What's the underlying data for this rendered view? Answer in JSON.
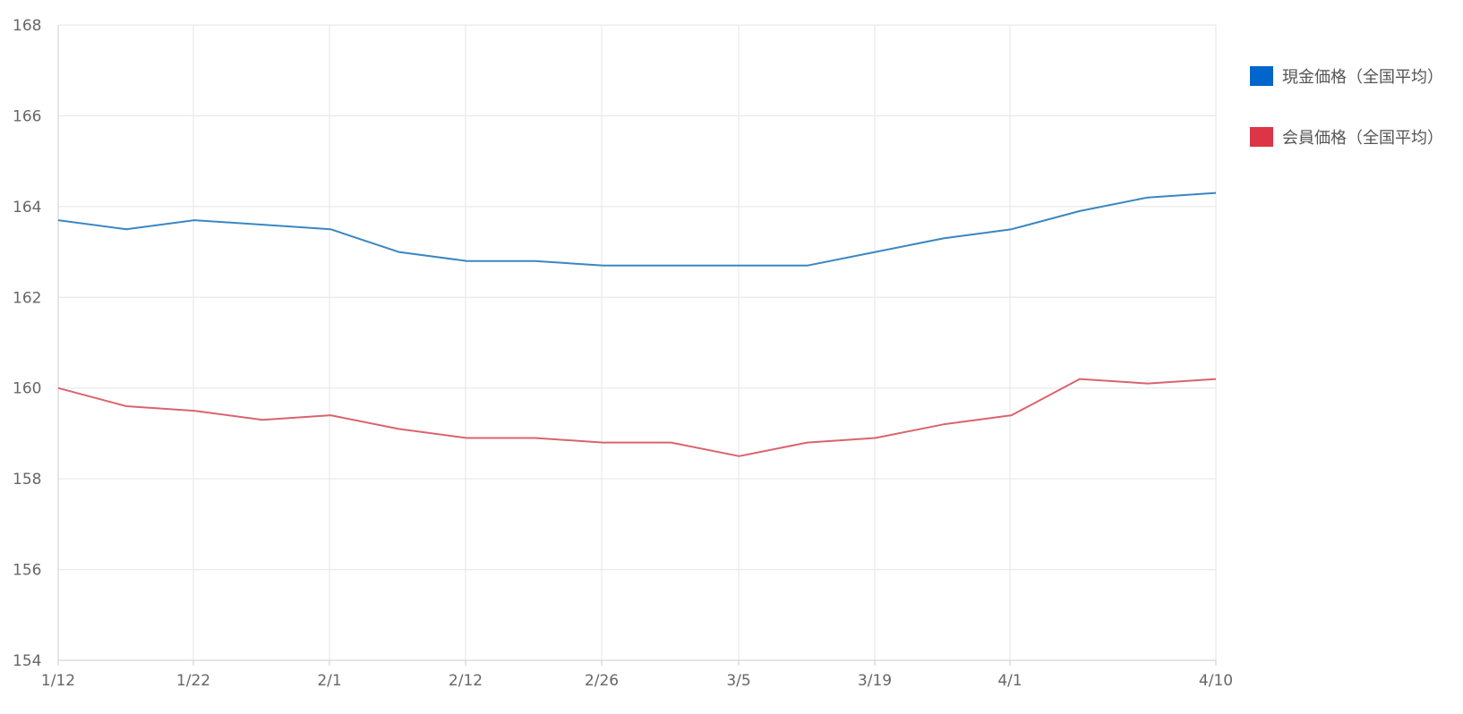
{
  "chart_data": {
    "type": "line",
    "x_tick_labels": [
      "1/12",
      "1/22",
      "2/1",
      "2/12",
      "2/26",
      "3/5",
      "3/19",
      "4/1",
      "4/10"
    ],
    "y_ticks": [
      154,
      156,
      158,
      160,
      162,
      164,
      166,
      168
    ],
    "ylim": [
      154,
      168
    ],
    "grid": true,
    "legend_position": "right",
    "series": [
      {
        "name": "現金価格（全国平均）",
        "color": "#0066cc",
        "line_color": "#3a87c2",
        "values": [
          163.7,
          163.5,
          163.7,
          163.6,
          163.5,
          163.0,
          162.8,
          162.8,
          162.7,
          162.7,
          162.7,
          162.7,
          163.0,
          163.3,
          163.5,
          163.9,
          164.2,
          164.3
        ]
      },
      {
        "name": "会員価格（全国平均）",
        "color": "#dc3545",
        "line_color": "#d9646e",
        "values": [
          160.0,
          159.6,
          159.5,
          159.3,
          159.4,
          159.1,
          158.9,
          158.9,
          158.8,
          158.8,
          158.5,
          158.8,
          158.9,
          159.2,
          159.4,
          160.2,
          160.1,
          160.2
        ]
      }
    ]
  }
}
